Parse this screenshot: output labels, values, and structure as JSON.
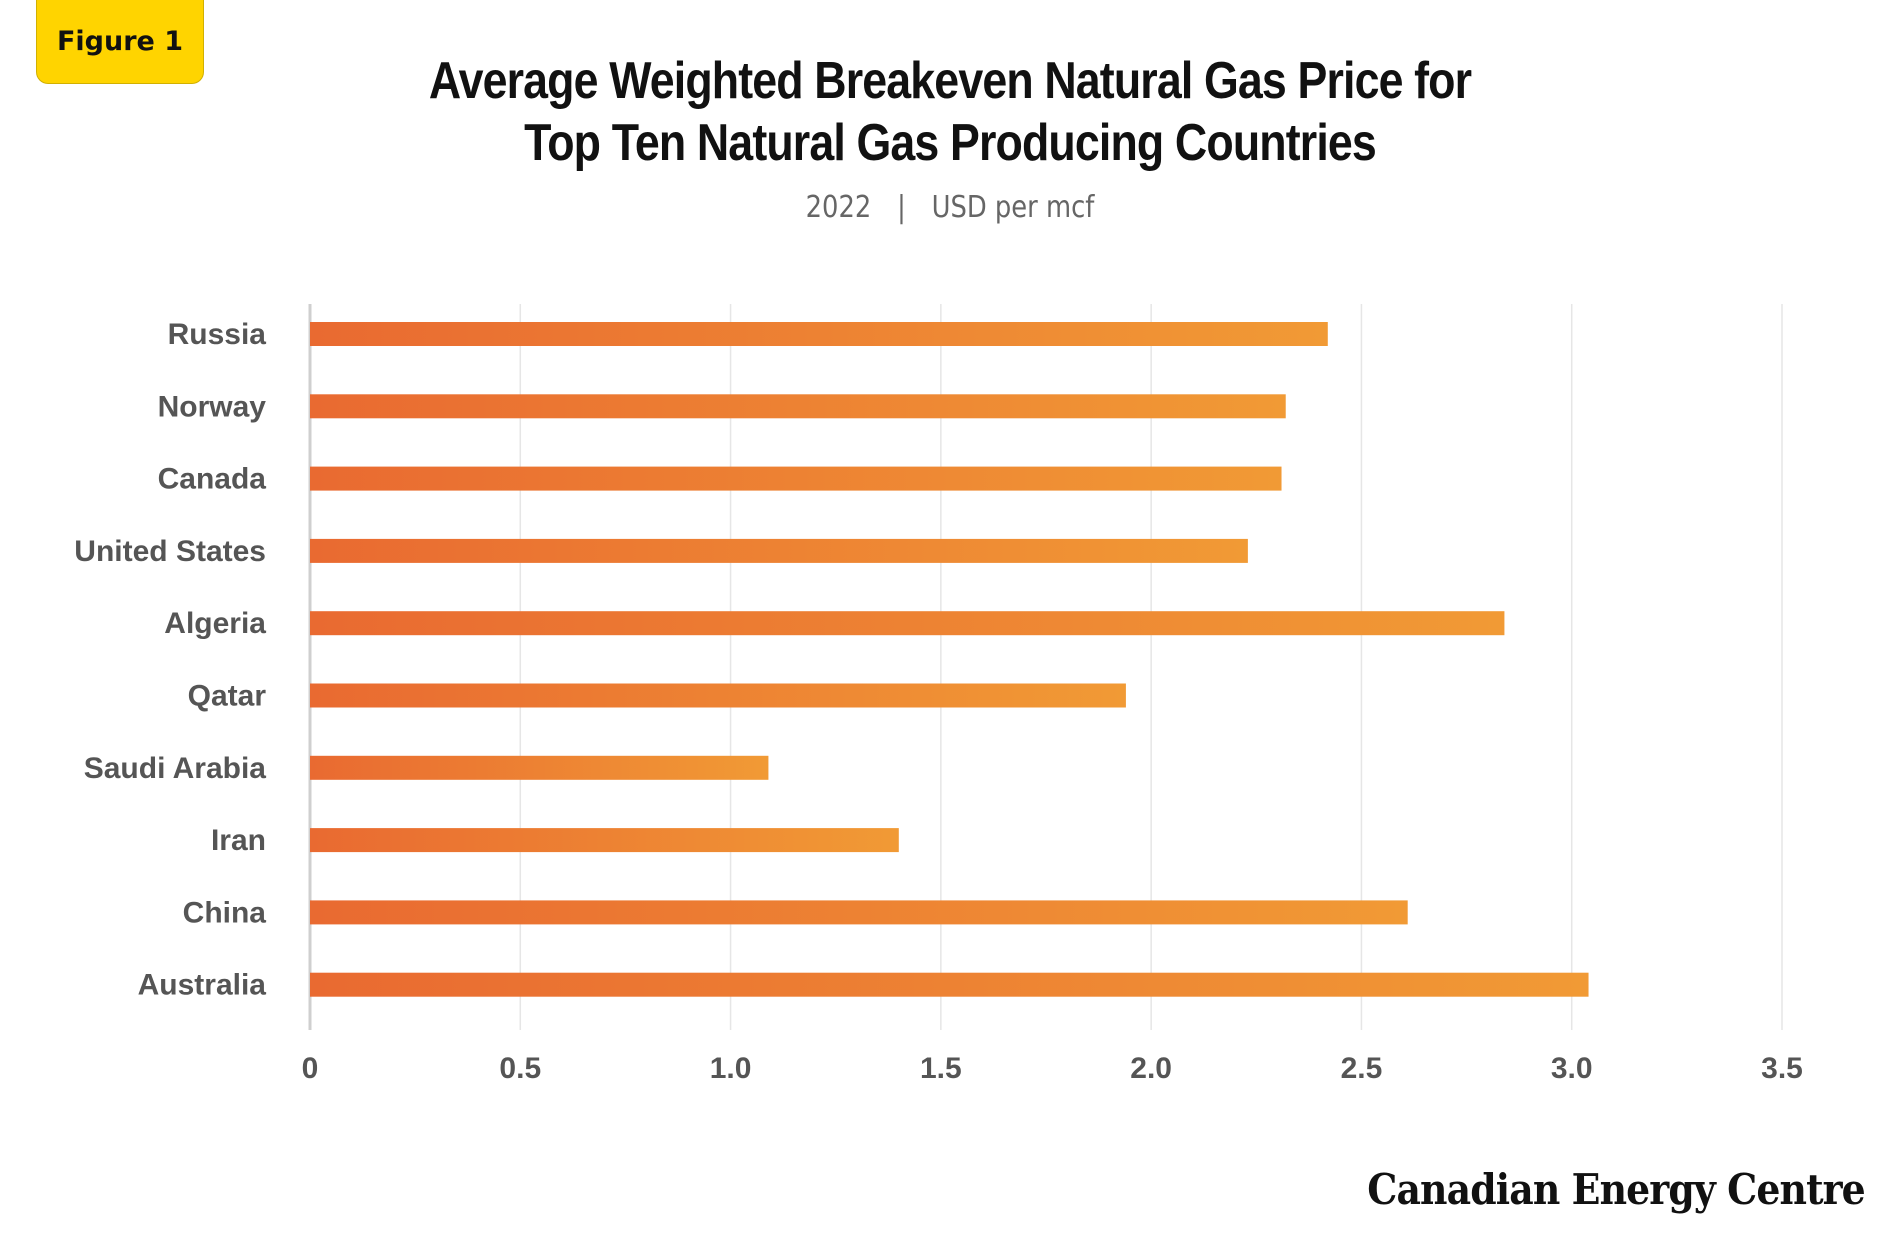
{
  "badge": {
    "label": "Figure 1"
  },
  "header": {
    "title_line1": "Average Weighted Breakeven  Natural Gas Price for",
    "title_line2": "Top Ten Natural Gas Producing Countries",
    "subtitle_year": "2022",
    "subtitle_separator": "|",
    "subtitle_unit": "USD per mcf"
  },
  "brand": {
    "name": "Canadian Energy Centre"
  },
  "colors": {
    "bar_start": "#e96a31",
    "bar_end": "#f19a35",
    "grid": "#e6e6e6",
    "axis": "#cfcfcf",
    "label": "#555555"
  },
  "chart_data": {
    "type": "bar",
    "orientation": "horizontal",
    "title": "Average Weighted Breakeven  Natural Gas Price for Top Ten Natural Gas Producing Countries",
    "subtitle": "2022 | USD per mcf",
    "categories": [
      "Russia",
      "Norway",
      "Canada",
      "United States",
      "Algeria",
      "Qatar",
      "Saudi Arabia",
      "Iran",
      "China",
      "Australia"
    ],
    "values": [
      2.42,
      2.32,
      2.31,
      2.23,
      2.84,
      1.94,
      1.09,
      1.4,
      2.61,
      3.04
    ],
    "xlim": [
      0,
      3.5
    ],
    "x_ticks": [
      "0",
      "0.5",
      "1.0",
      "1.5",
      "2.0",
      "2.5",
      "3.0",
      "3.5"
    ],
    "x_tick_values": [
      0,
      0.5,
      1.0,
      1.5,
      2.0,
      2.5,
      3.0,
      3.5
    ],
    "grid": "vertical",
    "legend": "none"
  }
}
